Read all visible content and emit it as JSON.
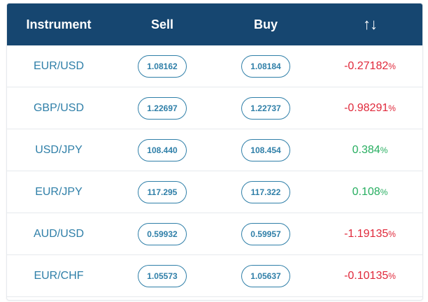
{
  "header": {
    "instrument": "Instrument",
    "sell": "Sell",
    "buy": "Buy",
    "sort_icon": "↑↓"
  },
  "colors": {
    "header_bg": "#164670",
    "accent": "#2f7fa8",
    "negative": "#e0283a",
    "positive": "#27ae60"
  },
  "rows": [
    {
      "instrument": "EUR/USD",
      "sell": "1.08162",
      "buy": "1.08184",
      "change": "-0.27182",
      "pct": "%",
      "direction": "neg"
    },
    {
      "instrument": "GBP/USD",
      "sell": "1.22697",
      "buy": "1.22737",
      "change": "-0.98291",
      "pct": "%",
      "direction": "neg"
    },
    {
      "instrument": "USD/JPY",
      "sell": "108.440",
      "buy": "108.454",
      "change": "0.384",
      "pct": "%",
      "direction": "pos"
    },
    {
      "instrument": "EUR/JPY",
      "sell": "117.295",
      "buy": "117.322",
      "change": "0.108",
      "pct": "%",
      "direction": "pos"
    },
    {
      "instrument": "AUD/USD",
      "sell": "0.59932",
      "buy": "0.59957",
      "change": "-1.19135",
      "pct": "%",
      "direction": "neg"
    },
    {
      "instrument": "EUR/CHF",
      "sell": "1.05573",
      "buy": "1.05637",
      "change": "-0.10135",
      "pct": "%",
      "direction": "neg"
    }
  ]
}
